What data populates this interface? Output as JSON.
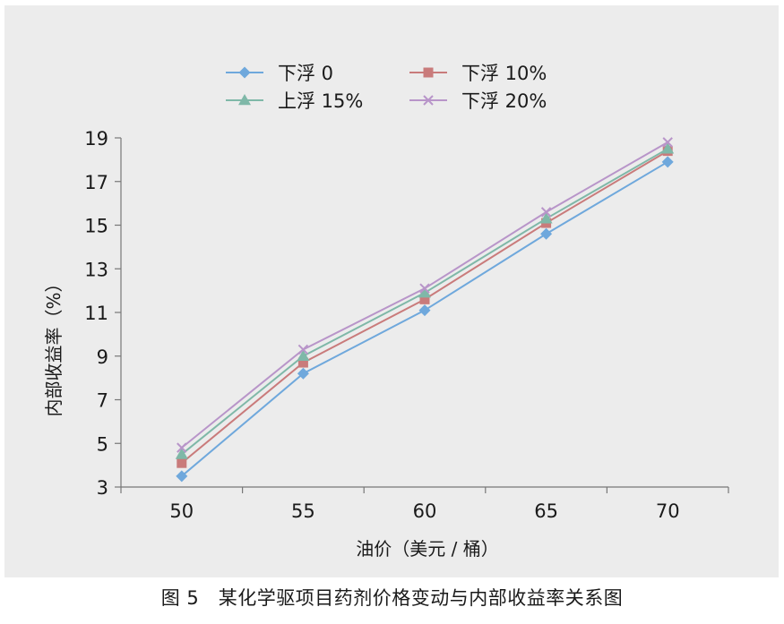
{
  "figure": {
    "caption": "图 5　某化学驱项目药剂价格变动与内部收益率关系图"
  },
  "colors": {
    "panel_bg": "#ececec",
    "axis": "#777777",
    "series": [
      "#6fa8dc",
      "#c97b7b",
      "#7fb8a8",
      "#b895c9"
    ]
  },
  "chart_data": {
    "type": "line",
    "title": "",
    "xlabel": "油价（美元 / 桶）",
    "ylabel": "内部收益率（%）",
    "x": [
      50,
      55,
      60,
      65,
      70
    ],
    "categories": [
      "50",
      "55",
      "60",
      "65",
      "70"
    ],
    "ylim": [
      3,
      19
    ],
    "yticks": [
      3,
      5,
      7,
      9,
      11,
      13,
      15,
      17,
      19
    ],
    "grid": false,
    "legend_position": "top",
    "series": [
      {
        "name": "下浮 0",
        "marker": "diamond",
        "values": [
          3.5,
          8.2,
          11.1,
          14.6,
          17.9
        ]
      },
      {
        "name": "下浮 10%",
        "marker": "square",
        "values": [
          4.1,
          8.7,
          11.6,
          15.1,
          18.4
        ]
      },
      {
        "name": "上浮 15%",
        "marker": "triangle",
        "values": [
          4.5,
          9.0,
          11.9,
          15.3,
          18.5
        ]
      },
      {
        "name": "下浮 20%",
        "marker": "x",
        "values": [
          4.8,
          9.3,
          12.1,
          15.6,
          18.8
        ]
      }
    ]
  }
}
